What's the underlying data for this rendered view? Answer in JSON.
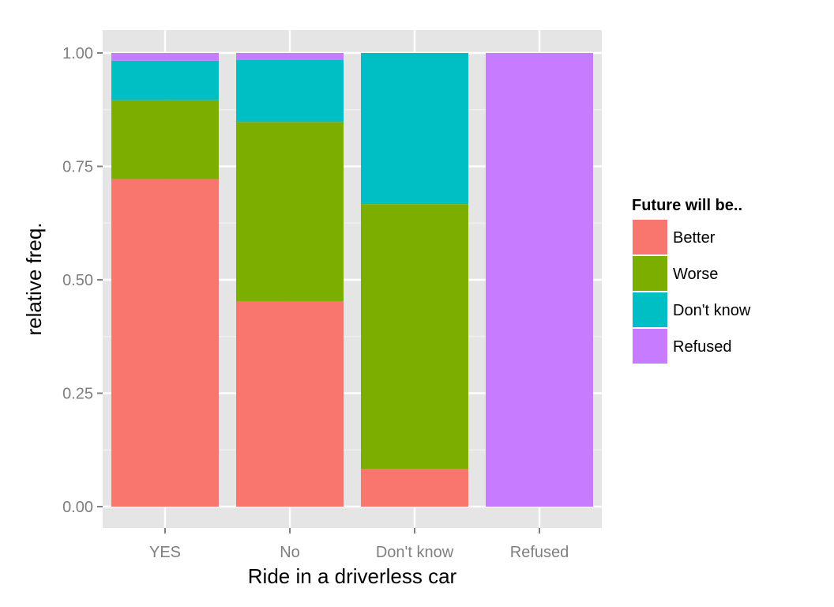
{
  "chart_data": {
    "type": "bar",
    "stacked": true,
    "xlabel": "Ride in a driverless car",
    "ylabel": "relative freq.",
    "ylim": [
      0,
      1
    ],
    "yticks": [
      "0.00",
      "0.25",
      "0.50",
      "0.75",
      "1.00"
    ],
    "categories": [
      "YES",
      "No",
      "Don't know",
      "Refused"
    ],
    "legend_title": "Future will be..",
    "legend_position": "right",
    "grid": true,
    "series": [
      {
        "name": "Better",
        "color": "#F8766D",
        "values": [
          0.722,
          0.453,
          0.083,
          0.0
        ]
      },
      {
        "name": "Worse",
        "color": "#7CAE00",
        "values": [
          0.174,
          0.395,
          0.584,
          0.0
        ]
      },
      {
        "name": "Don't know",
        "color": "#00BFC4",
        "values": [
          0.087,
          0.137,
          0.333,
          0.0
        ]
      },
      {
        "name": "Refused",
        "color": "#C77CFF",
        "values": [
          0.017,
          0.015,
          0.0,
          1.0
        ]
      }
    ]
  }
}
